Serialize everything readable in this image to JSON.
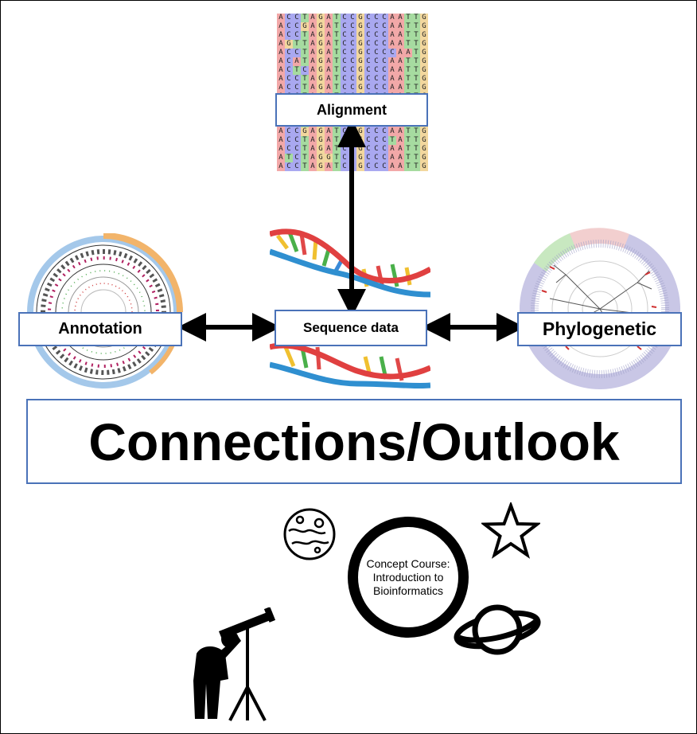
{
  "title": "Connections/Outlook",
  "nodes": {
    "alignment": "Alignment",
    "sequence": "Sequence data",
    "annotation": "Annotation",
    "phylogenetic": "Phylogenetic"
  },
  "course_lines": [
    "Concept Course:",
    "Introduction to",
    "Bioinformatics"
  ],
  "alignment_rows": [
    "ACCTAGATCCGCCCAATTG",
    "ACCGAGATCCGCCCAATTG",
    "ACCTAGATCCGCCCAATTG",
    "AGTTAGATCCGCCCAATTG",
    "ACCTAGATCCGCCCCAATG",
    "ACATAGATCCGCCCAATTG",
    "ACTCAGATCCGCCCAATTG",
    "ACCTAGATCCGCCCAATTG",
    "ACCTAGATCCGCCCAATTG",
    "ACCTAGATCCGCCCAATTG",
    "ACCTAGATCCGCCCAATTG",
    "ACCTAGATCCGCCCAATTG",
    "ACCTAGATCCGCCCAATTG",
    "ACCGAGATCCGCCCAATTG",
    "ACCTAGATCCGCCCTATTG",
    "ACCTAGATCCGCCCAATTG",
    "ATCTAGGTCCGCCCAATTG",
    "ACCTAGATCCGCCCAATTG"
  ],
  "base_colors": {
    "A": "#f2a8a8",
    "C": "#a9a8f0",
    "G": "#f2d79e",
    "T": "#a6dba0"
  },
  "accent": "#4a72b8"
}
